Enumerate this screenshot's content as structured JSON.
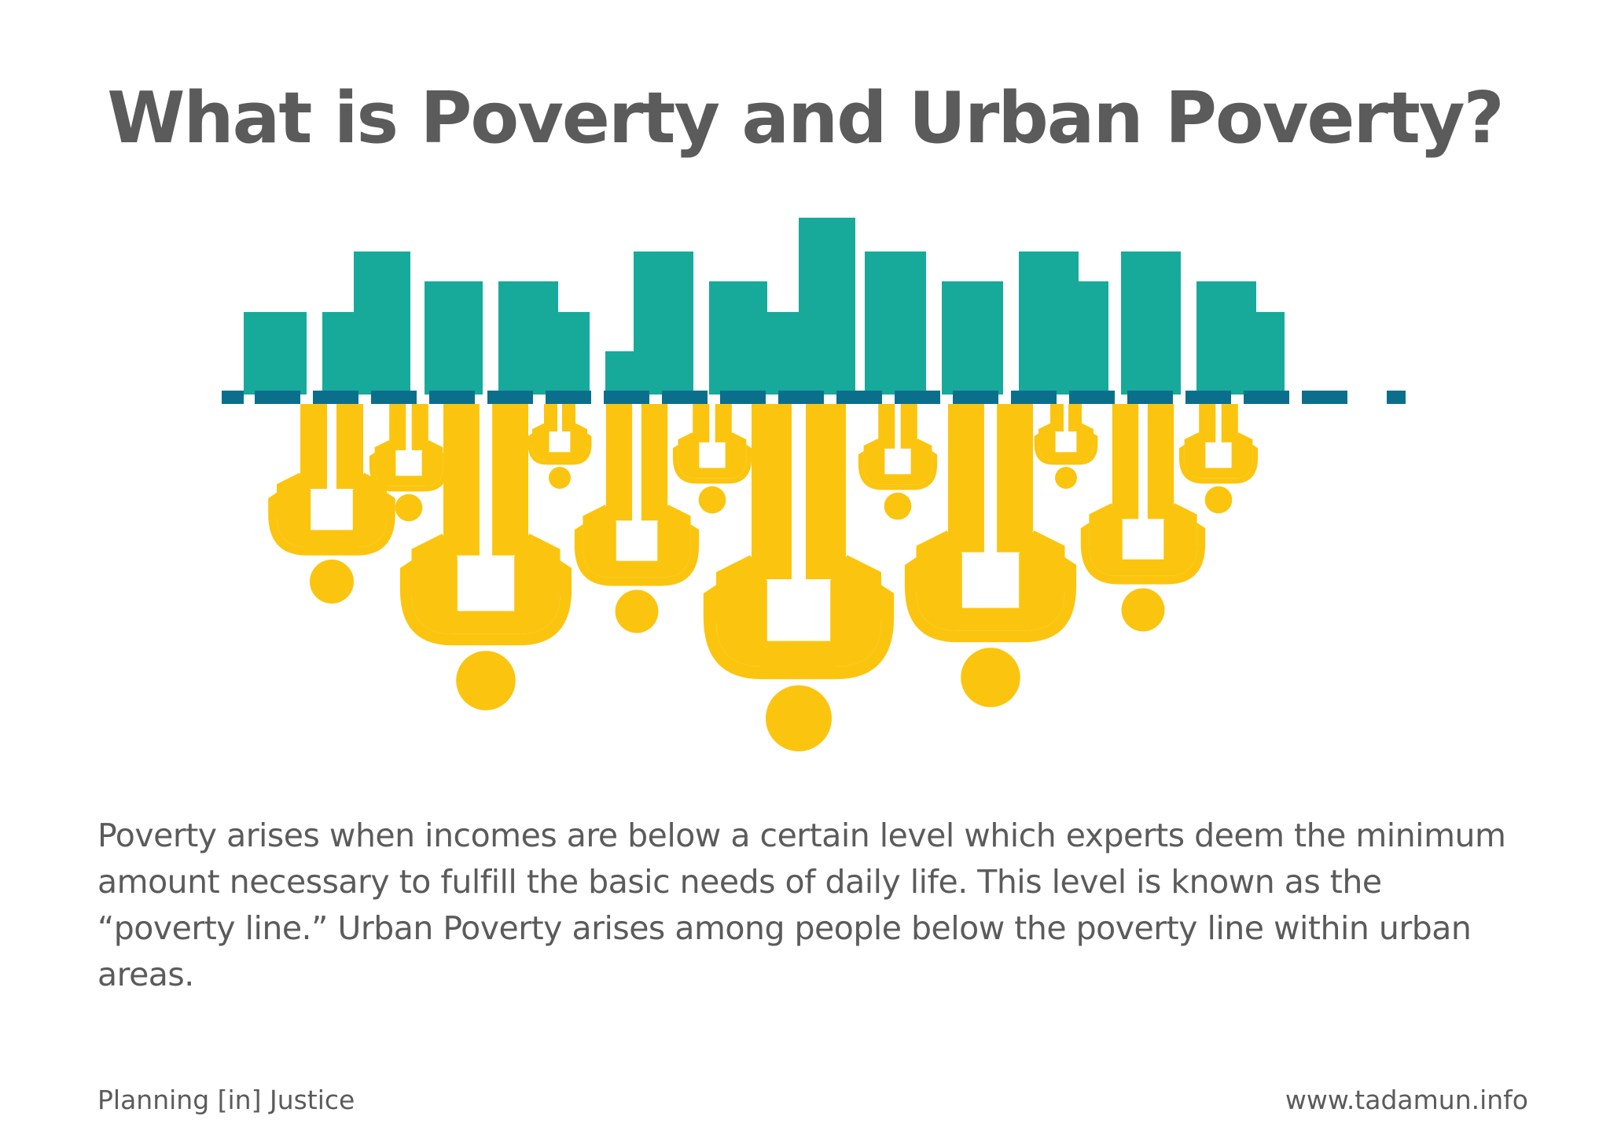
{
  "header": {
    "title": "What is Poverty and Urban Poverty?"
  },
  "illustration": {
    "skyline_color": "#17aa9b",
    "line_color": "#0b6f8c",
    "people_color": "#fbc50f"
  },
  "body": {
    "text": "Poverty arises when incomes are below a certain level which experts deem the minimum amount necessary to fulfill the basic needs of daily life. This level is known as the “poverty line.” Urban Poverty arises among people below the poverty line within urban areas."
  },
  "footer": {
    "left": "Planning [in] Justice",
    "right": "www.tadamun.info"
  }
}
